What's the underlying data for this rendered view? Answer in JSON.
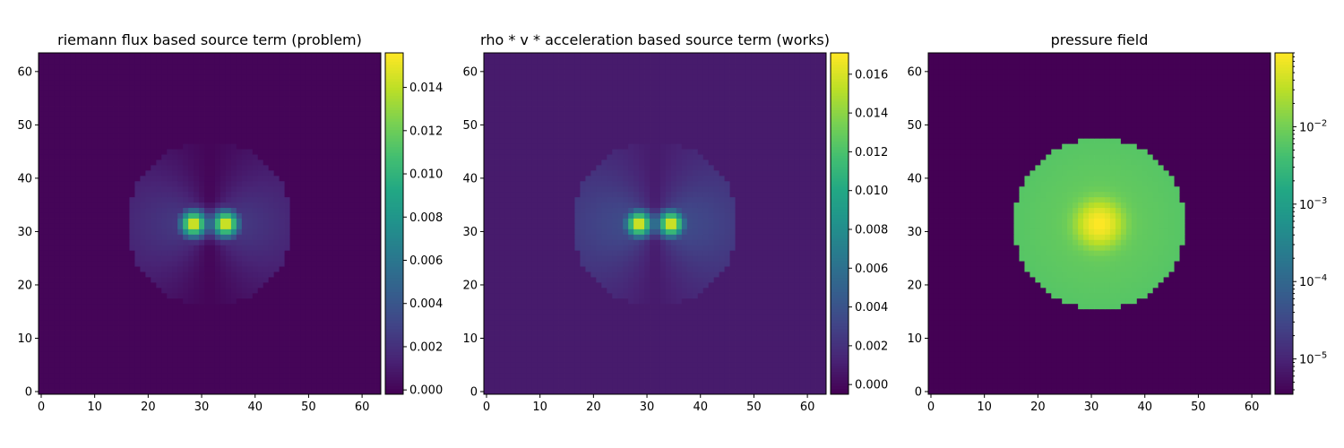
{
  "figure": {
    "background": "#ffffff"
  },
  "chart_data": [
    {
      "type": "heatmap",
      "title": "riemann flux based source term (problem)",
      "xlabel": "",
      "ylabel": "",
      "xlim": [
        0,
        63
      ],
      "ylim": [
        0,
        63
      ],
      "x_ticks": [
        "0",
        "10",
        "20",
        "30",
        "40",
        "50",
        "60"
      ],
      "y_ticks": [
        "0",
        "10",
        "20",
        "30",
        "40",
        "50",
        "60"
      ],
      "grid_size": 64,
      "colormap": "viridis",
      "color_scale": "linear",
      "background_value": 0.0,
      "colorbar": {
        "range": [
          -0.0002,
          0.0156
        ],
        "ticks": [
          "0.000",
          "0.002",
          "0.004",
          "0.006",
          "0.008",
          "0.010",
          "0.012",
          "0.014"
        ]
      },
      "field": {
        "shape": "dipole",
        "disk_center": [
          31.5,
          31.5
        ],
        "disk_radius": 15.5,
        "peaks": [
          [
            28.5,
            31.5
          ],
          [
            34.5,
            31.5
          ]
        ],
        "peak_value": 0.0155,
        "edge_value": 0.0025
      }
    },
    {
      "type": "heatmap",
      "title": "rho * v * acceleration based source term (works)",
      "xlabel": "",
      "ylabel": "",
      "xlim": [
        0,
        63
      ],
      "ylim": [
        0,
        63
      ],
      "x_ticks": [
        "0",
        "10",
        "20",
        "30",
        "40",
        "50",
        "60"
      ],
      "y_ticks": [
        "0",
        "10",
        "20",
        "30",
        "40",
        "50",
        "60"
      ],
      "grid_size": 64,
      "colormap": "viridis",
      "color_scale": "linear",
      "background_value": 0.0008,
      "colorbar": {
        "range": [
          -0.0005,
          0.0171
        ],
        "ticks": [
          "0.000",
          "0.002",
          "0.004",
          "0.006",
          "0.008",
          "0.010",
          "0.012",
          "0.014",
          "0.016"
        ]
      },
      "field": {
        "shape": "dipole",
        "disk_center": [
          31.5,
          31.5
        ],
        "disk_radius": 15.5,
        "peaks": [
          [
            28.5,
            31.5
          ],
          [
            34.5,
            31.5
          ]
        ],
        "peak_value": 0.017,
        "edge_value": 0.0028
      }
    },
    {
      "type": "heatmap",
      "title": "pressure field",
      "xlabel": "",
      "ylabel": "",
      "xlim": [
        0,
        63
      ],
      "ylim": [
        0,
        63
      ],
      "x_ticks": [
        "0",
        "10",
        "20",
        "30",
        "40",
        "50",
        "60"
      ],
      "y_ticks": [
        "0",
        "10",
        "20",
        "30",
        "40",
        "50",
        "60"
      ],
      "grid_size": 64,
      "colormap": "viridis",
      "color_scale": "log",
      "background_value": 3.5e-06,
      "colorbar": {
        "range": [
          3.5e-06,
          0.09
        ],
        "ticks": [
          {
            "base": "10",
            "exp": "−2",
            "value": 0.01
          },
          {
            "base": "10",
            "exp": "−3",
            "value": 0.001
          },
          {
            "base": "10",
            "exp": "−4",
            "value": 0.0001
          },
          {
            "base": "10",
            "exp": "−5",
            "value": 1e-05
          }
        ]
      },
      "field": {
        "shape": "disk",
        "disk_center": [
          31.5,
          31.5
        ],
        "disk_radius": 16.0,
        "peaks": [
          [
            31.5,
            31.5
          ]
        ],
        "peak_value": 0.09,
        "edge_value": 0.006
      }
    }
  ]
}
